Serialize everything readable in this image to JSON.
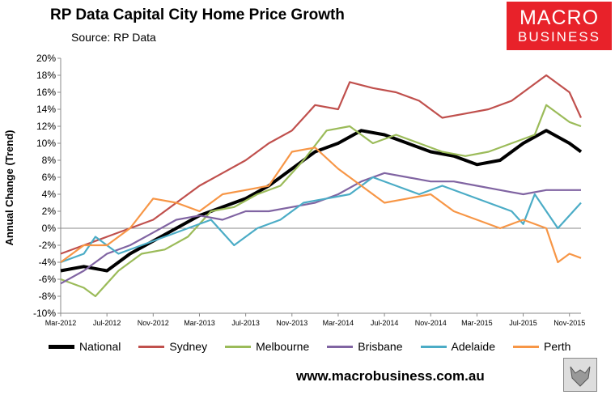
{
  "header": {
    "title": "RP Data Capital City Home Price Growth",
    "source": "Source: RP Data"
  },
  "logo": {
    "line1": "MACRO",
    "line2": "BUSINESS"
  },
  "footer": {
    "url": "www.macrobusiness.com.au"
  },
  "chart_data": {
    "type": "line",
    "title": "RP Data Capital City Home Price Growth",
    "xlabel": "",
    "ylabel": "Annual Change (Trend)",
    "ylim": [
      -10,
      20
    ],
    "y_ticks": [
      "-10%",
      "-8%",
      "-6%",
      "-4%",
      "-2%",
      "0%",
      "2%",
      "4%",
      "6%",
      "8%",
      "10%",
      "12%",
      "14%",
      "16%",
      "18%",
      "20%"
    ],
    "x_ticks": [
      "Mar-2012",
      "Jul-2012",
      "Nov-2012",
      "Mar-2013",
      "Jul-2013",
      "Nov-2013",
      "Mar-2014",
      "Jul-2014",
      "Nov-2014",
      "Mar-2015",
      "Jul-2015",
      "Nov-2015"
    ],
    "x_months": [
      0,
      4,
      8,
      12,
      16,
      20,
      24,
      28,
      32,
      36,
      40,
      44
    ],
    "x_range_months": [
      0,
      45
    ],
    "grid": false,
    "legend_position": "bottom",
    "series": [
      {
        "name": "National",
        "color": "#000000",
        "width": 4,
        "points": [
          [
            0,
            -5
          ],
          [
            2,
            -4.5
          ],
          [
            4,
            -5
          ],
          [
            6,
            -3
          ],
          [
            8,
            -1.5
          ],
          [
            10,
            0
          ],
          [
            12,
            1.5
          ],
          [
            14,
            2.5
          ],
          [
            16,
            3.5
          ],
          [
            18,
            5
          ],
          [
            20,
            7
          ],
          [
            22,
            9
          ],
          [
            24,
            10
          ],
          [
            26,
            11.5
          ],
          [
            28,
            11
          ],
          [
            30,
            10
          ],
          [
            32,
            9
          ],
          [
            34,
            8.5
          ],
          [
            36,
            7.5
          ],
          [
            38,
            8
          ],
          [
            40,
            10
          ],
          [
            42,
            11.5
          ],
          [
            44,
            10
          ],
          [
            45,
            9
          ]
        ]
      },
      {
        "name": "Sydney",
        "color": "#c0504d",
        "width": 2.2,
        "points": [
          [
            0,
            -3
          ],
          [
            2,
            -2
          ],
          [
            4,
            -1
          ],
          [
            6,
            0
          ],
          [
            8,
            1
          ],
          [
            10,
            3
          ],
          [
            12,
            5
          ],
          [
            14,
            6.5
          ],
          [
            16,
            8
          ],
          [
            18,
            10
          ],
          [
            20,
            11.5
          ],
          [
            22,
            14.5
          ],
          [
            24,
            14
          ],
          [
            25,
            17.2
          ],
          [
            27,
            16.5
          ],
          [
            29,
            16
          ],
          [
            31,
            15
          ],
          [
            33,
            13
          ],
          [
            35,
            13.5
          ],
          [
            37,
            14
          ],
          [
            39,
            15
          ],
          [
            41,
            17
          ],
          [
            42,
            18
          ],
          [
            44,
            16
          ],
          [
            45,
            13
          ]
        ]
      },
      {
        "name": "Melbourne",
        "color": "#9bbb59",
        "width": 2.2,
        "points": [
          [
            0,
            -6
          ],
          [
            2,
            -7
          ],
          [
            3,
            -8
          ],
          [
            5,
            -5
          ],
          [
            7,
            -3
          ],
          [
            9,
            -2.5
          ],
          [
            11,
            -1
          ],
          [
            13,
            2
          ],
          [
            15,
            2.5
          ],
          [
            17,
            4
          ],
          [
            19,
            5
          ],
          [
            21,
            8
          ],
          [
            23,
            11.5
          ],
          [
            25,
            12
          ],
          [
            27,
            10
          ],
          [
            29,
            11
          ],
          [
            31,
            10
          ],
          [
            33,
            9
          ],
          [
            35,
            8.5
          ],
          [
            37,
            9
          ],
          [
            39,
            10
          ],
          [
            41,
            11
          ],
          [
            42,
            14.5
          ],
          [
            44,
            12.5
          ],
          [
            45,
            12
          ]
        ]
      },
      {
        "name": "Brisbane",
        "color": "#8064a2",
        "width": 2.2,
        "points": [
          [
            0,
            -6.5
          ],
          [
            2,
            -5
          ],
          [
            4,
            -3
          ],
          [
            6,
            -2
          ],
          [
            8,
            -0.5
          ],
          [
            10,
            1
          ],
          [
            12,
            1.5
          ],
          [
            14,
            1
          ],
          [
            16,
            2
          ],
          [
            18,
            2
          ],
          [
            20,
            2.5
          ],
          [
            22,
            3
          ],
          [
            24,
            4
          ],
          [
            26,
            5.5
          ],
          [
            28,
            6.5
          ],
          [
            30,
            6
          ],
          [
            32,
            5.5
          ],
          [
            34,
            5.5
          ],
          [
            36,
            5
          ],
          [
            38,
            4.5
          ],
          [
            40,
            4
          ],
          [
            42,
            4.5
          ],
          [
            44,
            4.5
          ],
          [
            45,
            4.5
          ]
        ]
      },
      {
        "name": "Adelaide",
        "color": "#4bacc6",
        "width": 2.2,
        "points": [
          [
            0,
            -4
          ],
          [
            2,
            -3
          ],
          [
            3,
            -1
          ],
          [
            5,
            -3
          ],
          [
            7,
            -2
          ],
          [
            9,
            -1
          ],
          [
            11,
            0
          ],
          [
            13,
            1
          ],
          [
            15,
            -2
          ],
          [
            17,
            0
          ],
          [
            19,
            1
          ],
          [
            21,
            3
          ],
          [
            23,
            3.5
          ],
          [
            25,
            4
          ],
          [
            27,
            6
          ],
          [
            29,
            5
          ],
          [
            31,
            4
          ],
          [
            33,
            5
          ],
          [
            35,
            4
          ],
          [
            37,
            3
          ],
          [
            39,
            2
          ],
          [
            40,
            0.5
          ],
          [
            41,
            4
          ],
          [
            43,
            0
          ],
          [
            45,
            3
          ]
        ]
      },
      {
        "name": "Perth",
        "color": "#f79646",
        "width": 2.2,
        "points": [
          [
            0,
            -4
          ],
          [
            2,
            -2
          ],
          [
            4,
            -2
          ],
          [
            6,
            0
          ],
          [
            8,
            3.5
          ],
          [
            10,
            3
          ],
          [
            12,
            2
          ],
          [
            14,
            4
          ],
          [
            16,
            4.5
          ],
          [
            18,
            5
          ],
          [
            20,
            9
          ],
          [
            22,
            9.5
          ],
          [
            24,
            7
          ],
          [
            26,
            5
          ],
          [
            28,
            3
          ],
          [
            30,
            3.5
          ],
          [
            32,
            4
          ],
          [
            34,
            2
          ],
          [
            36,
            1
          ],
          [
            38,
            0
          ],
          [
            40,
            1
          ],
          [
            42,
            0
          ],
          [
            43,
            -4
          ],
          [
            44,
            -3
          ],
          [
            45,
            -3.5
          ]
        ]
      }
    ]
  }
}
